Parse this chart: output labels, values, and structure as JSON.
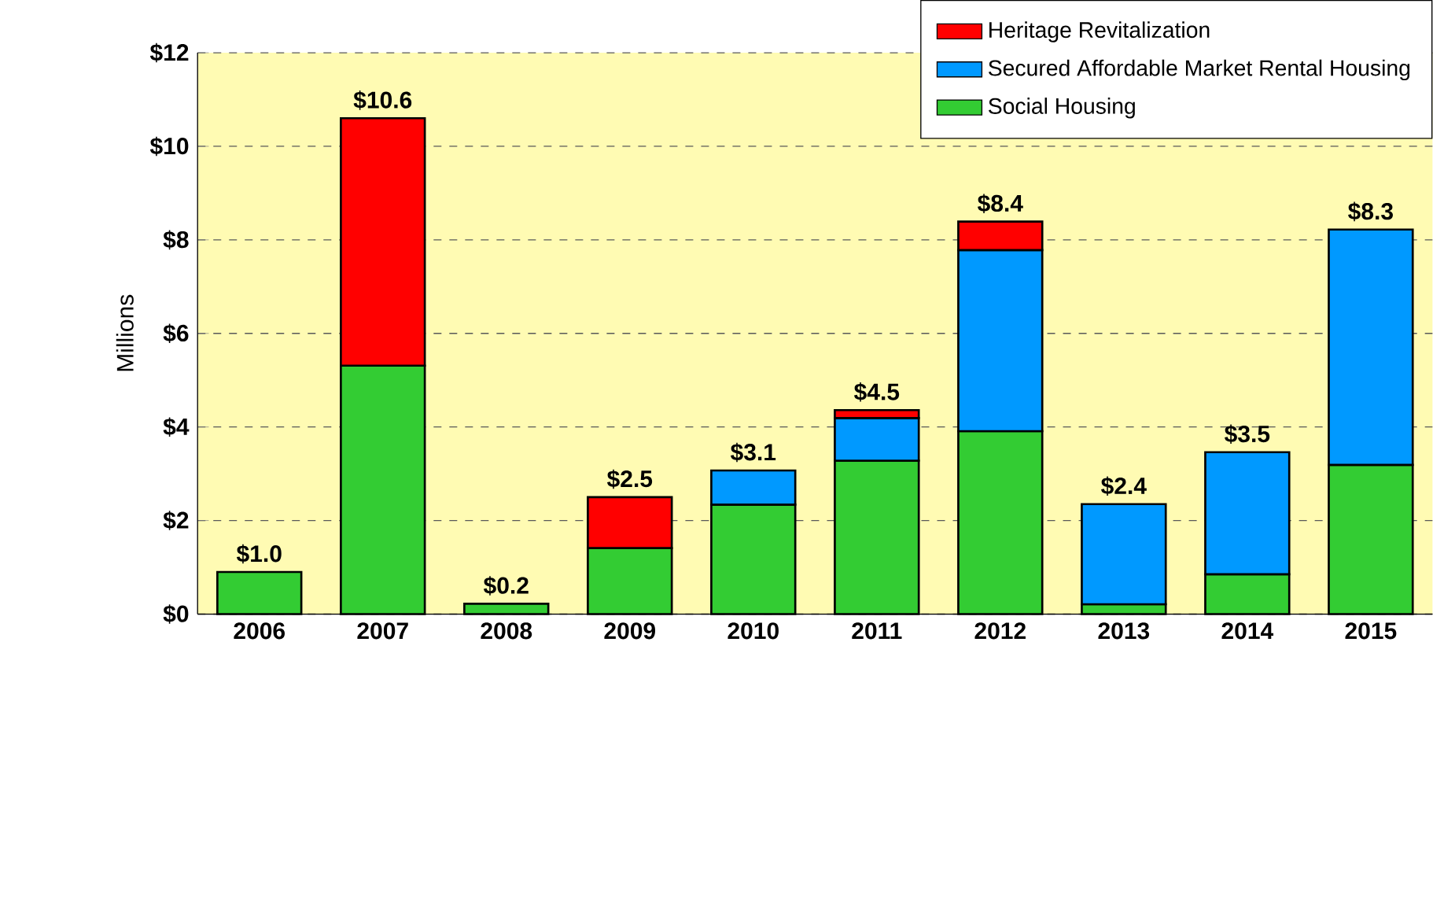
{
  "chart_data": {
    "type": "bar",
    "stacked": true,
    "ylabel": "Millions",
    "categories": [
      "2006",
      "2007",
      "2008",
      "2009",
      "2010",
      "2011",
      "2012",
      "2013",
      "2014",
      "2015"
    ],
    "series": [
      {
        "name": "Social Housing",
        "color": "#33cc33",
        "values": [
          0.9,
          5.31,
          0.22,
          1.41,
          2.34,
          3.28,
          3.91,
          0.21,
          0.85,
          3.19
        ]
      },
      {
        "name": "Secured Affordable Market Rental Housing",
        "color": "#0099ff",
        "values": [
          null,
          null,
          null,
          null,
          0.73,
          0.91,
          3.87,
          2.14,
          2.61,
          5.03
        ]
      },
      {
        "name": "Heritage Revitalization",
        "color": "#ff0000",
        "values": [
          null,
          5.29,
          null,
          1.09,
          null,
          0.17,
          0.61,
          null,
          null,
          null
        ]
      }
    ],
    "totals": [
      "$1.0",
      "$10.6",
      "$0.2",
      "$2.5",
      "$3.1",
      "$4.5",
      "$8.4",
      "$2.4",
      "$3.5",
      "$8.3"
    ],
    "ylim": [
      0,
      12
    ],
    "yticks": [
      {
        "value": 0,
        "label": "$0"
      },
      {
        "value": 2,
        "label": "$2"
      },
      {
        "value": 4,
        "label": "$4"
      },
      {
        "value": 6,
        "label": "$6"
      },
      {
        "value": 8,
        "label": "$8"
      },
      {
        "value": 10,
        "label": "$10"
      },
      {
        "value": 12,
        "label": "$12"
      }
    ],
    "grid": "y",
    "legend": "top right"
  }
}
